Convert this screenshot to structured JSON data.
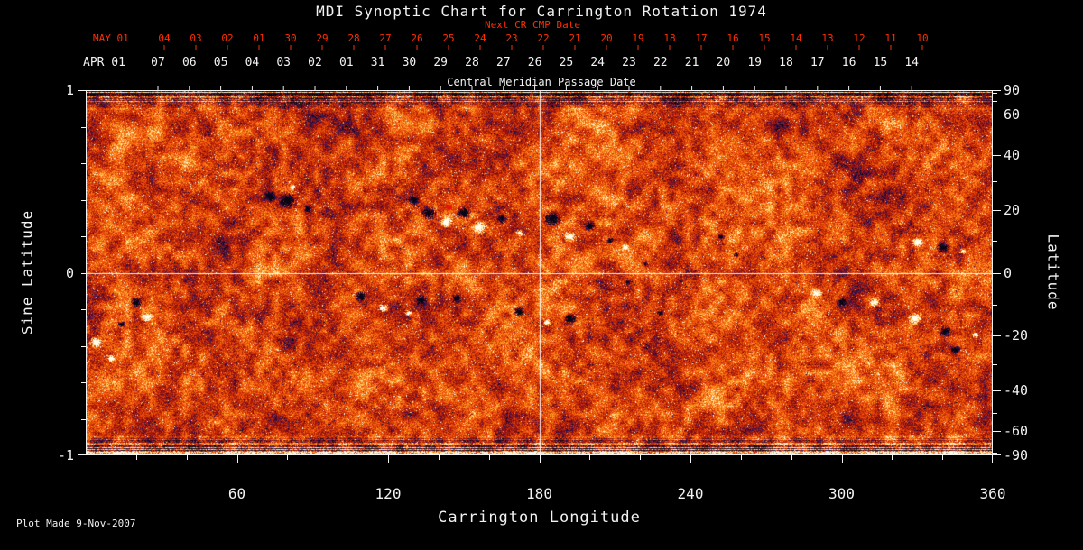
{
  "title": "MDI Synoptic Chart for Carrington Rotation 1974",
  "annotations": {
    "next_cr_label": "Next CR CMP Date",
    "cmp_label": "Central Meridian Passage Date",
    "plot_made": "Plot Made  9-Nov-2007"
  },
  "colors": {
    "background": "#000000",
    "text": "#f2f2f2",
    "date_red": "#ff2f00",
    "axis": "#f2f2f2"
  },
  "chart_data": {
    "type": "heatmap",
    "title": "MDI Synoptic Chart for Carrington Rotation 1974",
    "xlabel": "Carrington Longitude",
    "ylabel_left": "Sine Latitude",
    "ylabel_right": "Latitude",
    "xlim": [
      0,
      360
    ],
    "ylim_sine_latitude": [
      -1,
      1
    ],
    "x_ticks": [
      60,
      120,
      180,
      240,
      300,
      360
    ],
    "x_minor_step": 20,
    "left_ticks": [
      {
        "value": 1,
        "label": "1"
      },
      {
        "value": 0,
        "label": "0"
      },
      {
        "value": -1,
        "label": "-1"
      }
    ],
    "left_minor_step": 0.1,
    "right_ticks": [
      90,
      60,
      40,
      20,
      0,
      -20,
      -40,
      -60,
      -90
    ],
    "right_minor_step": 10,
    "grid": "white crosshair only",
    "crosshair": {
      "longitude": 180,
      "sine_latitude": 0
    },
    "top_axis": {
      "title": "Central Meridian Passage Date",
      "next_cr": {
        "month_label": "MAY 01",
        "days": [
          "04",
          "03",
          "02",
          "01",
          "30",
          "29",
          "28",
          "27",
          "26",
          "25",
          "24",
          "23",
          "22",
          "21",
          "20",
          "19",
          "18",
          "17",
          "16",
          "15",
          "14",
          "13",
          "12",
          "11",
          "10"
        ]
      },
      "current_cr": {
        "month_label": "APR 01",
        "days": [
          "07",
          "06",
          "05",
          "04",
          "03",
          "02",
          "01",
          "31",
          "30",
          "29",
          "28",
          "27",
          "26",
          "25",
          "24",
          "23",
          "22",
          "21",
          "20",
          "19",
          "18",
          "17",
          "16",
          "15",
          "14"
        ]
      }
    },
    "palette": [
      [
        0.0,
        "#080614"
      ],
      [
        0.05,
        "#19145a"
      ],
      [
        0.12,
        "#460f4b"
      ],
      [
        0.22,
        "#7d0f19"
      ],
      [
        0.36,
        "#b41e08"
      ],
      [
        0.5,
        "#e13e05"
      ],
      [
        0.64,
        "#f5640c"
      ],
      [
        0.78,
        "#fc9628"
      ],
      [
        0.88,
        "#ffce5f"
      ],
      [
        0.95,
        "#ffeeb9"
      ],
      [
        1.0,
        "#fffdee"
      ]
    ],
    "red_marker_color": "#e61408",
    "polarity_convention": "1 = positive (white patch), -1 = negative (dark patch), 0 = saturated red marker",
    "active_regions": [
      {
        "lon": 73,
        "slat": 0.42,
        "size": 3.5,
        "pol": -1
      },
      {
        "lon": 80,
        "slat": 0.4,
        "size": 5.0,
        "pol": -1
      },
      {
        "lon": 82,
        "slat": 0.47,
        "size": 1.8,
        "pol": 1
      },
      {
        "lon": 88,
        "slat": 0.35,
        "size": 2.2,
        "pol": -1
      },
      {
        "lon": 130,
        "slat": 0.4,
        "size": 3.2,
        "pol": -1
      },
      {
        "lon": 136,
        "slat": 0.33,
        "size": 4.3,
        "pol": -1
      },
      {
        "lon": 143,
        "slat": 0.28,
        "size": 3.6,
        "pol": 1
      },
      {
        "lon": 150,
        "slat": 0.33,
        "size": 3.9,
        "pol": -1
      },
      {
        "lon": 156,
        "slat": 0.25,
        "size": 4.3,
        "pol": 1
      },
      {
        "lon": 144,
        "slat": 0.36,
        "size": 1.2,
        "pol": 0
      },
      {
        "lon": 165,
        "slat": 0.3,
        "size": 2.9,
        "pol": -1
      },
      {
        "lon": 172,
        "slat": 0.22,
        "size": 2.1,
        "pol": 1
      },
      {
        "lon": 185,
        "slat": 0.3,
        "size": 4.7,
        "pol": -1
      },
      {
        "lon": 192,
        "slat": 0.2,
        "size": 3.2,
        "pol": 1
      },
      {
        "lon": 200,
        "slat": 0.26,
        "size": 3.2,
        "pol": -1
      },
      {
        "lon": 208,
        "slat": 0.18,
        "size": 1.8,
        "pol": -1
      },
      {
        "lon": 214,
        "slat": 0.14,
        "size": 2.1,
        "pol": 1
      },
      {
        "lon": 252,
        "slat": 0.2,
        "size": 1.8,
        "pol": -1
      },
      {
        "lon": 258,
        "slat": 0.1,
        "size": 1.5,
        "pol": -1
      },
      {
        "lon": 330,
        "slat": 0.17,
        "size": 3.2,
        "pol": 1
      },
      {
        "lon": 340,
        "slat": 0.14,
        "size": 3.6,
        "pol": -1
      },
      {
        "lon": 348,
        "slat": 0.12,
        "size": 1.8,
        "pol": 1
      },
      {
        "lon": 4,
        "slat": -0.38,
        "size": 3.6,
        "pol": 1
      },
      {
        "lon": 10,
        "slat": -0.47,
        "size": 2.5,
        "pol": 1
      },
      {
        "lon": 20,
        "slat": -0.16,
        "size": 3.2,
        "pol": -1
      },
      {
        "lon": 24,
        "slat": -0.24,
        "size": 2.9,
        "pol": 1
      },
      {
        "lon": 14,
        "slat": -0.28,
        "size": 2.1,
        "pol": -1
      },
      {
        "lon": 109,
        "slat": -0.13,
        "size": 3.2,
        "pol": -1
      },
      {
        "lon": 118,
        "slat": -0.19,
        "size": 2.9,
        "pol": 1
      },
      {
        "lon": 133,
        "slat": -0.15,
        "size": 3.6,
        "pol": -1
      },
      {
        "lon": 128,
        "slat": -0.22,
        "size": 2.1,
        "pol": 1
      },
      {
        "lon": 147,
        "slat": -0.14,
        "size": 2.9,
        "pol": -1
      },
      {
        "lon": 172,
        "slat": -0.21,
        "size": 3.2,
        "pol": -1
      },
      {
        "lon": 183,
        "slat": -0.27,
        "size": 2.1,
        "pol": 1
      },
      {
        "lon": 192,
        "slat": -0.25,
        "size": 3.6,
        "pol": -1
      },
      {
        "lon": 215,
        "slat": -0.05,
        "size": 1.8,
        "pol": -1
      },
      {
        "lon": 222,
        "slat": 0.05,
        "size": 1.4,
        "pol": -1
      },
      {
        "lon": 228,
        "slat": -0.22,
        "size": 1.8,
        "pol": -1
      },
      {
        "lon": 290,
        "slat": -0.11,
        "size": 2.9,
        "pol": 1
      },
      {
        "lon": 300,
        "slat": -0.16,
        "size": 2.9,
        "pol": -1
      },
      {
        "lon": 313,
        "slat": -0.16,
        "size": 2.9,
        "pol": 1
      },
      {
        "lon": 329,
        "slat": -0.25,
        "size": 3.9,
        "pol": 1
      },
      {
        "lon": 341,
        "slat": -0.32,
        "size": 3.2,
        "pol": -1
      },
      {
        "lon": 345,
        "slat": -0.42,
        "size": 2.9,
        "pol": -1
      },
      {
        "lon": 353,
        "slat": -0.34,
        "size": 1.8,
        "pol": 1
      }
    ]
  }
}
